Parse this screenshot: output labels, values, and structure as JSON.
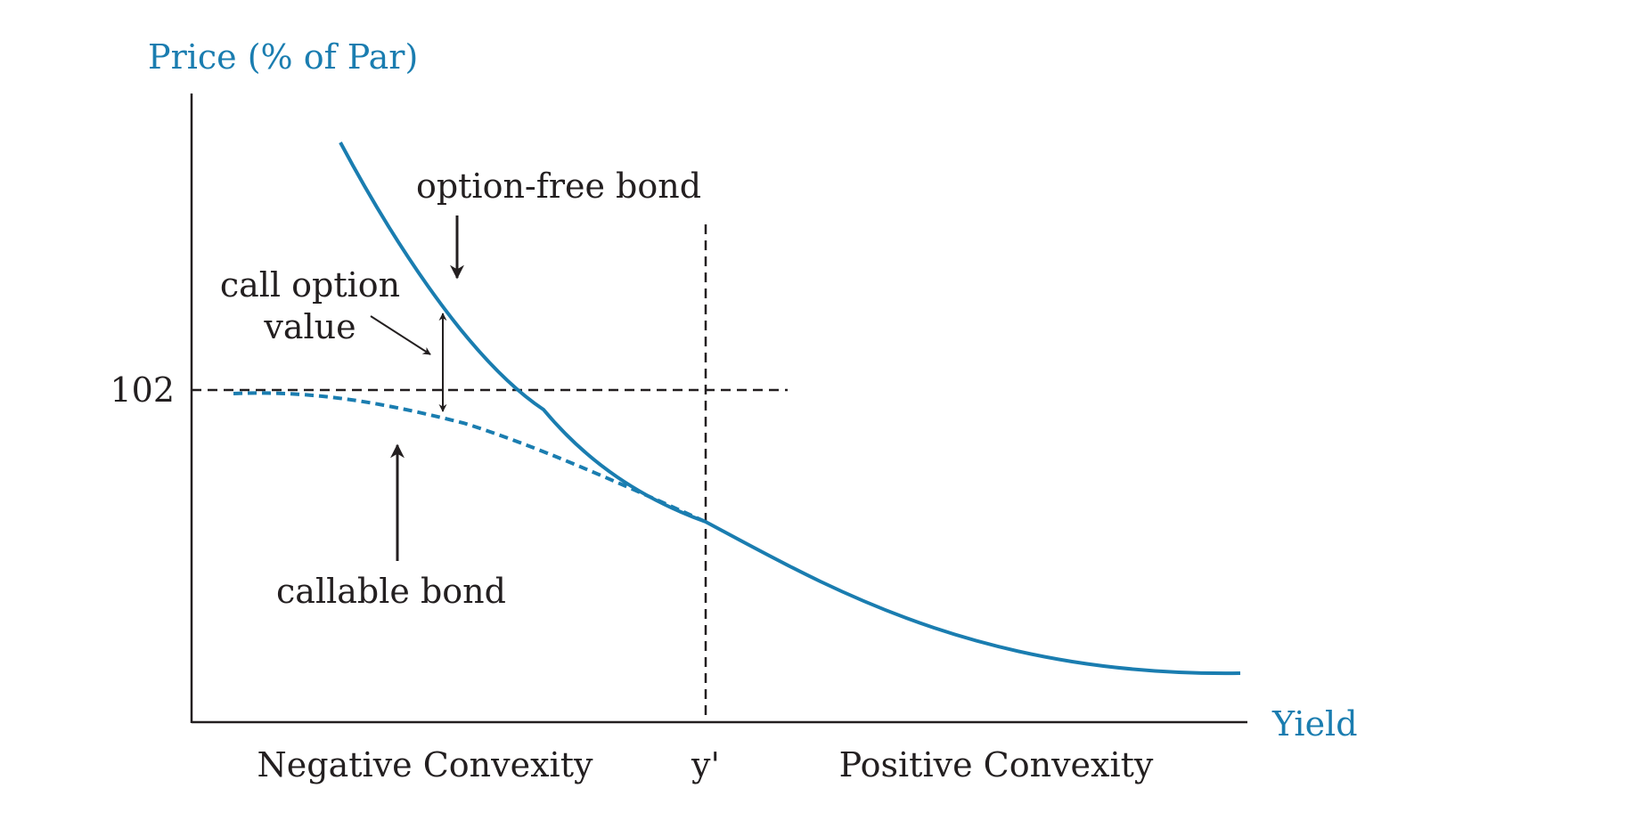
{
  "colors": {
    "curve": "#1a7db0",
    "ink": "#231f20",
    "axis_title": "#1a7db0"
  },
  "y_axis": {
    "title": "Price (% of Par)",
    "tick_label": "102"
  },
  "x_axis": {
    "title": "Yield",
    "tick_label": "y'"
  },
  "regions": {
    "left": "Negative Convexity",
    "right": "Positive Convexity"
  },
  "annotations": {
    "option_free": "option-free bond",
    "callable": "callable bond",
    "call_option_line1": "call option",
    "call_option_line2": "value"
  }
}
